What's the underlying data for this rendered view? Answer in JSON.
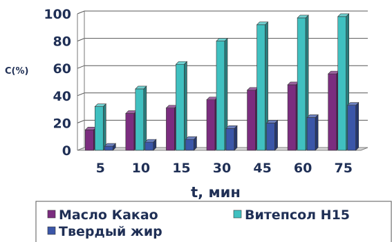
{
  "chart_data": {
    "type": "bar",
    "title": "",
    "xlabel": "t, мин",
    "ylabel": "C(%)",
    "ylim": [
      0,
      100
    ],
    "yticks": [
      "0",
      "20",
      "40",
      "60",
      "80",
      "100"
    ],
    "categories": [
      "5",
      "10",
      "15",
      "30",
      "45",
      "60",
      "75"
    ],
    "grid": true,
    "legend_position": "bottom",
    "series": [
      {
        "name": "Масло Какао",
        "color": "#7b2d7f",
        "values": [
          15,
          27,
          31,
          37,
          44,
          48,
          56
        ]
      },
      {
        "name": "Витепсол Н15",
        "color": "#40c0c0",
        "values": [
          32,
          45,
          63,
          80,
          92,
          97,
          98
        ]
      },
      {
        "name": "Твердый жир",
        "color": "#3b56a8",
        "values": [
          3,
          6,
          8,
          16,
          20,
          24,
          33
        ]
      }
    ]
  }
}
